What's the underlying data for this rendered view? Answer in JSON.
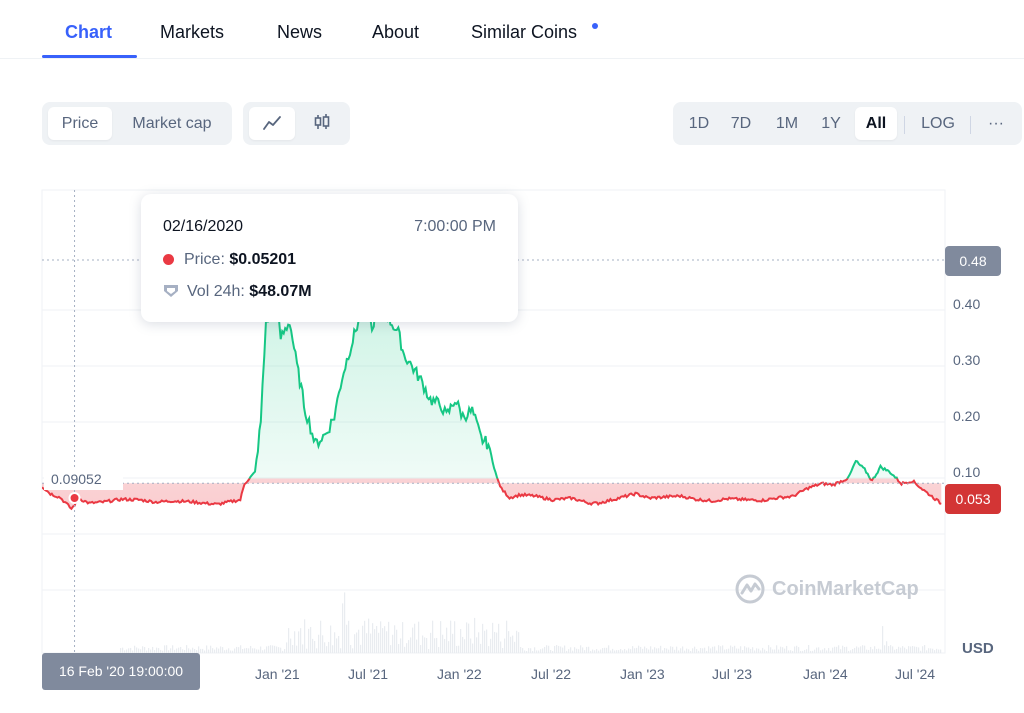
{
  "tabs": [
    {
      "label": "Chart",
      "active": true
    },
    {
      "label": "Markets"
    },
    {
      "label": "News"
    },
    {
      "label": "About"
    },
    {
      "label": "Similar Coins",
      "has_dot": true
    }
  ],
  "toolbar": {
    "metric_options": [
      "Price",
      "Market cap"
    ],
    "metric_selected": "Price",
    "chart_styles": [
      "line-chart-icon",
      "candlestick-icon"
    ],
    "chart_style_selected": "line-chart-icon",
    "ranges": [
      "1D",
      "7D",
      "1M",
      "1Y",
      "All"
    ],
    "range_selected": "All",
    "log_label": "LOG",
    "more_label": "···"
  },
  "tooltip": {
    "date": "02/16/2020",
    "time": "7:00:00 PM",
    "price_label": "Price: ",
    "price_value": "$0.05201",
    "vol_label": "Vol 24h: ",
    "vol_value": "$48.07M"
  },
  "crosshair": {
    "x_label": "16 Feb '20 19:00:00",
    "y_label": "0.48"
  },
  "baseline_label": "0.09052",
  "current_price_label": "0.053",
  "watermark": "CoinMarketCap",
  "currency": "USD",
  "colors": {
    "accent": "#3861fb",
    "up": "#16c784",
    "down": "#ea3943"
  },
  "chart_data": {
    "type": "area",
    "baseline": 0.09052,
    "ylim": [
      0.0,
      0.5
    ],
    "y_ticks": [
      "0.10",
      "0.20",
      "0.30",
      "0.40"
    ],
    "x_ticks": [
      "Jan '21",
      "Jul '21",
      "Jan '22",
      "Jul '22",
      "Jan '23",
      "Jul '23",
      "Jan '24",
      "Jul '24"
    ],
    "series": [
      {
        "x": [
          "2019-12-16",
          "2020-01-01",
          "2020-01-20",
          "2020-02-10",
          "2020-02-16",
          "2020-02-25",
          "2020-03-15",
          "2020-04-10",
          "2020-05-15",
          "2020-06-20",
          "2020-07-20",
          "2020-08-20",
          "2020-09-20",
          "2020-10-20",
          "2020-11-15",
          "2020-12-10",
          "2020-12-28",
          "2021-01-05",
          "2021-01-25",
          "2021-02-05",
          "2021-02-15",
          "2021-03-05",
          "2021-03-15",
          "2021-04-01",
          "2021-04-15",
          "2021-05-01",
          "2021-05-08",
          "2021-05-20",
          "2021-06-10",
          "2021-06-25",
          "2021-07-10",
          "2021-07-25",
          "2021-08-10",
          "2021-08-25",
          "2021-09-05",
          "2021-09-15",
          "2021-09-25",
          "2021-10-10",
          "2021-10-25",
          "2021-11-05",
          "2021-11-20",
          "2021-12-10",
          "2021-12-25",
          "2022-01-15",
          "2022-01-25",
          "2022-02-10",
          "2022-02-25",
          "2022-03-15",
          "2022-04-01",
          "2022-04-15",
          "2022-05-01",
          "2022-05-10",
          "2022-05-25",
          "2022-06-15",
          "2022-07-10",
          "2022-08-15",
          "2022-09-20",
          "2022-10-25",
          "2022-11-10",
          "2022-12-15",
          "2023-01-20",
          "2023-02-15",
          "2023-03-15",
          "2023-04-15",
          "2023-05-15",
          "2023-06-15",
          "2023-07-15",
          "2023-08-20",
          "2023-09-20",
          "2023-10-20",
          "2023-11-15",
          "2023-12-15",
          "2024-01-10",
          "2024-02-01",
          "2024-03-01",
          "2024-03-15",
          "2024-04-01",
          "2024-04-15",
          "2024-05-01",
          "2024-05-20",
          "2024-06-10",
          "2024-07-01",
          "2024-07-20",
          "2024-08-10",
          "2024-08-25"
        ],
        "values": [
          0.085,
          0.072,
          0.065,
          0.045,
          0.052,
          0.063,
          0.055,
          0.057,
          0.062,
          0.061,
          0.057,
          0.059,
          0.058,
          0.055,
          0.053,
          0.058,
          0.061,
          0.09,
          0.11,
          0.2,
          0.38,
          0.42,
          0.35,
          0.38,
          0.3,
          0.22,
          0.2,
          0.16,
          0.18,
          0.21,
          0.28,
          0.33,
          0.38,
          0.43,
          0.36,
          0.42,
          0.41,
          0.38,
          0.36,
          0.32,
          0.3,
          0.27,
          0.24,
          0.23,
          0.21,
          0.24,
          0.21,
          0.22,
          0.17,
          0.16,
          0.1,
          0.08,
          0.065,
          0.07,
          0.068,
          0.061,
          0.064,
          0.055,
          0.055,
          0.063,
          0.072,
          0.064,
          0.066,
          0.068,
          0.062,
          0.059,
          0.063,
          0.061,
          0.06,
          0.065,
          0.067,
          0.082,
          0.09,
          0.088,
          0.1,
          0.13,
          0.115,
          0.095,
          0.12,
          0.11,
          0.09,
          0.095,
          0.08,
          0.065,
          0.054
        ]
      }
    ]
  }
}
